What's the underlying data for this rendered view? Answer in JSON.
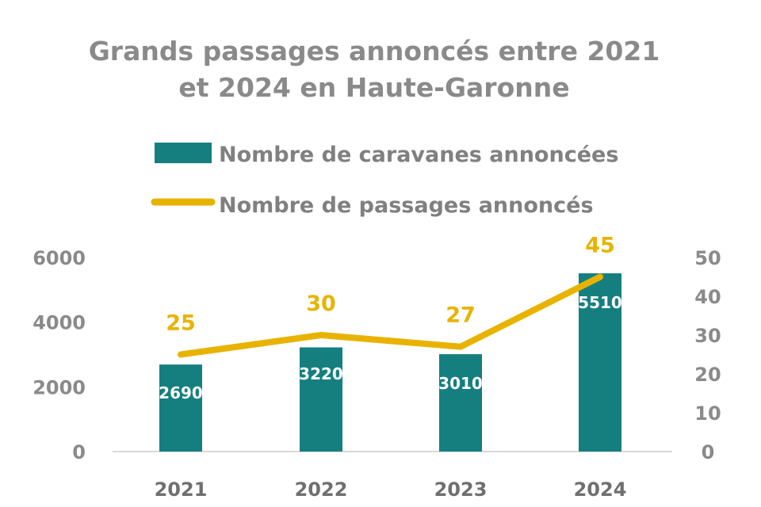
{
  "chart_data": {
    "type": "bar",
    "title_lines": [
      "Grands passages annoncés entre 2021",
      "et 2024 en Haute-Garonne"
    ],
    "categories": [
      "2021",
      "2022",
      "2023",
      "2024"
    ],
    "series": [
      {
        "name": "Nombre de caravanes annoncées",
        "type": "bar",
        "axis": "left",
        "values": [
          2690,
          3220,
          3010,
          5510
        ],
        "color": "#157f80"
      },
      {
        "name": "Nombre de passages annoncés",
        "type": "line",
        "axis": "right",
        "values": [
          25,
          30,
          27,
          45
        ],
        "color": "#e8b300"
      }
    ],
    "y_left": {
      "ylim": [
        0,
        6000
      ],
      "ticks": [
        0,
        2000,
        4000,
        6000
      ]
    },
    "y_right": {
      "ylim": [
        0,
        50
      ],
      "ticks": [
        0,
        10,
        20,
        30,
        40,
        50
      ]
    },
    "legend_position": "top",
    "grid": false
  }
}
